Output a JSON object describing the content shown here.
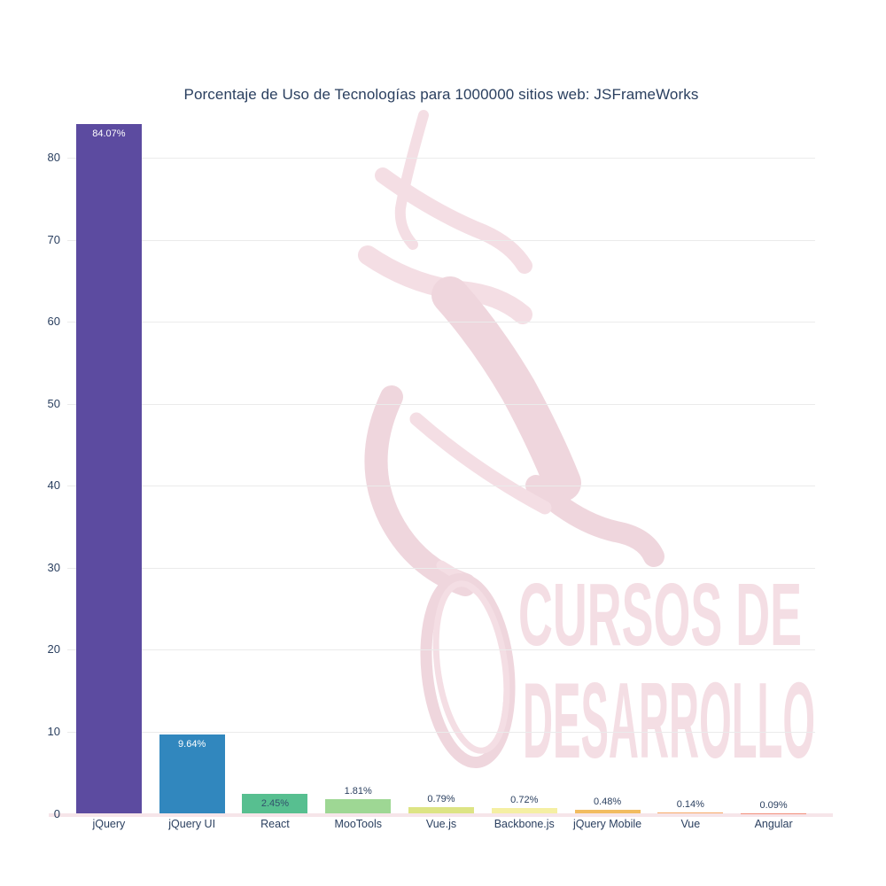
{
  "watermark": {
    "line1": "CURSOS DE",
    "line2": "DESARROLLO",
    "color_light": "#f4dee4",
    "color_dense": "#efd6dd"
  },
  "chart_data": {
    "type": "bar",
    "title": "Porcentaje de Uso de Tecnologías para 1000000 sitios web: JSFrameWorks",
    "categories": [
      "jQuery",
      "jQuery UI",
      "React",
      "MooTools",
      "Vue.js",
      "Backbone.js",
      "jQuery Mobile",
      "Vue",
      "Angular"
    ],
    "values": [
      84.07,
      9.64,
      2.45,
      1.81,
      0.79,
      0.72,
      0.48,
      0.14,
      0.09
    ],
    "value_labels": [
      "84.07%",
      "9.64%",
      "2.45%",
      "1.81%",
      "0.79%",
      "0.72%",
      "0.48%",
      "0.14%",
      "0.09%"
    ],
    "bar_colors": [
      "#5c4ba0",
      "#3187be",
      "#57bf90",
      "#9ed794",
      "#dde484",
      "#f5efa3",
      "#f2bc60",
      "#f8ab69",
      "#f2907d"
    ],
    "label_placement": [
      "inside-top",
      "inside-top",
      "inside-middle",
      "above",
      "above",
      "above",
      "above",
      "above",
      "above"
    ],
    "label_colors": [
      "#ffffff",
      "#ffffff",
      "#31506b",
      "#2a3f5f",
      "#2a3f5f",
      "#2a3f5f",
      "#2a3f5f",
      "#2a3f5f",
      "#2a3f5f"
    ],
    "xlabel": "",
    "ylabel": "",
    "yticks": [
      0,
      10,
      20,
      30,
      40,
      50,
      60,
      70,
      80
    ],
    "ylim": [
      0,
      84.65
    ],
    "grid": true,
    "legend": false,
    "font_color": "#2a3f5f",
    "grid_color": "#ebebeb",
    "axisline_color": "#f6e5e9",
    "background": "#ffffff"
  }
}
